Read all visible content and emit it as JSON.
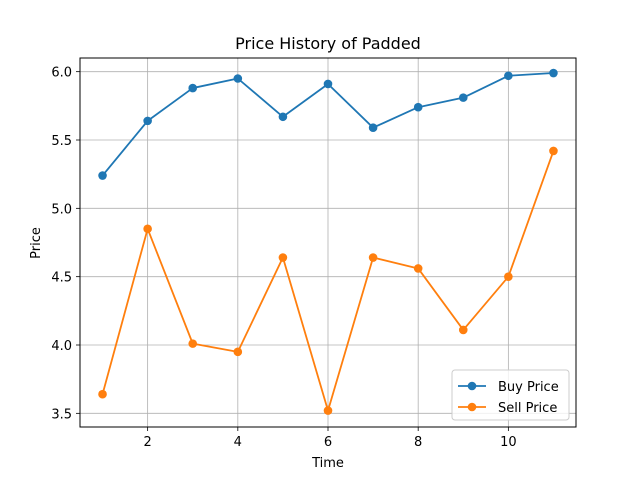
{
  "chart_data": {
    "type": "line",
    "title": "Price History of Padded",
    "xlabel": "Time",
    "ylabel": "Price",
    "x": [
      1,
      2,
      3,
      4,
      5,
      6,
      7,
      8,
      9,
      10,
      11
    ],
    "series": [
      {
        "name": "Buy Price",
        "color": "#1f77b4",
        "values": [
          5.24,
          5.64,
          5.88,
          5.95,
          5.67,
          5.91,
          5.59,
          5.74,
          5.81,
          5.97,
          5.99
        ]
      },
      {
        "name": "Sell Price",
        "color": "#ff7f0e",
        "values": [
          3.64,
          4.85,
          4.01,
          3.95,
          4.64,
          3.52,
          4.64,
          4.56,
          4.11,
          4.5,
          5.42
        ]
      }
    ],
    "xlim": [
      0.5,
      11.5
    ],
    "ylim": [
      3.4,
      6.1
    ],
    "xticks": [
      2,
      4,
      6,
      8,
      10
    ],
    "xtick_labels": [
      "2",
      "4",
      "6",
      "8",
      "10"
    ],
    "yticks": [
      3.5,
      4.0,
      4.5,
      5.0,
      5.5,
      6.0
    ],
    "ytick_labels": [
      "3.5",
      "4.0",
      "4.5",
      "5.0",
      "5.5",
      "6.0"
    ],
    "grid": true,
    "legend_position": "lower-right"
  }
}
